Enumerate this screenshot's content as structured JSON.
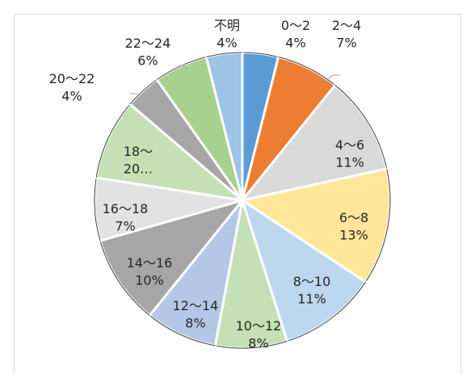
{
  "chart_data": {
    "type": "pie",
    "slices": [
      {
        "category": "0〜2",
        "percent_label": "4%",
        "value": 4,
        "color": "#5B9BD5"
      },
      {
        "category": "2〜4",
        "percent_label": "7%",
        "value": 7,
        "color": "#ED7D31"
      },
      {
        "category": "4〜6",
        "percent_label": "11%",
        "value": 11,
        "color": "#D9D9D9"
      },
      {
        "category": "6〜8",
        "percent_label": "13%",
        "value": 13,
        "color": "#FFE699"
      },
      {
        "category": "8〜10",
        "percent_label": "11%",
        "value": 11,
        "color": "#BDD7EE"
      },
      {
        "category": "10〜12",
        "percent_label": "8%",
        "value": 8,
        "color": "#C5E0B4"
      },
      {
        "category": "12〜14",
        "percent_label": "8%",
        "value": 8,
        "color": "#B4C7E7"
      },
      {
        "category": "14〜16",
        "percent_label": "10%",
        "value": 10,
        "color": "#A6A6A6"
      },
      {
        "category": "16〜18",
        "percent_label": "7%",
        "value": 7,
        "color": "#E2E2E2"
      },
      {
        "category": "18〜20…",
        "percent_label": "",
        "value": 9,
        "color": "#C5E0B4"
      },
      {
        "category": "20〜22",
        "percent_label": "4%",
        "value": 4,
        "color": "#A6A6A6"
      },
      {
        "category": "22〜24",
        "percent_label": "6%",
        "value": 6,
        "color": "#A9D18E"
      },
      {
        "category": "不明",
        "percent_label": "4%",
        "value": 4,
        "color": "#9DC3E6"
      }
    ],
    "label_lines": {
      "0": [
        "0〜2",
        "4%"
      ],
      "1": [
        "2〜4",
        "7%"
      ],
      "2": [
        "4〜6",
        "11%"
      ],
      "3": [
        "6〜8",
        "13%"
      ],
      "4": [
        "8〜10",
        "11%"
      ],
      "5": [
        "10〜12",
        "8%"
      ],
      "6": [
        "12〜14",
        "8%"
      ],
      "7": [
        "14〜16",
        "10%"
      ],
      "8": [
        "16〜18",
        "7%"
      ],
      "9": [
        "18〜",
        "20…"
      ],
      "10": [
        "20〜22",
        "4%"
      ],
      "11": [
        "22〜24",
        "6%"
      ],
      "12": [
        "不明",
        "4%"
      ]
    },
    "slice_border_color": "#ffffff",
    "slice_outline_color": "#404040"
  }
}
